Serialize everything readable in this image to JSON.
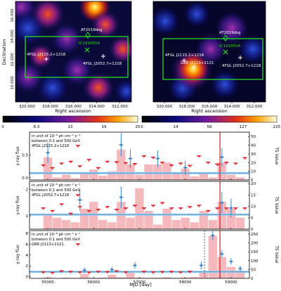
{
  "maps": [
    {
      "id": "left",
      "xlabel": "Right ascension",
      "ylabel": "Declination",
      "xticks": [
        "320.000",
        "318.000",
        "316.000",
        "314.000",
        "312.000"
      ],
      "yticks": [
        "16.000",
        "14.000",
        "12.000",
        "10.000"
      ],
      "labels": {
        "at": "AT2019dsg",
        "ic": "IC191001A",
        "src1": "4FGL J2115.2+1218",
        "src2": "4FGL J2052.7+1218"
      },
      "colorbar": {
        "ticks": [
          "0",
          "6.3",
          "13",
          "19",
          "25"
        ],
        "min": 0,
        "max": 25
      }
    },
    {
      "id": "right",
      "xlabel": "Right ascension",
      "ylabel": "",
      "xticks": [
        "320.000",
        "318.000",
        "316.000",
        "314.000",
        "312.000"
      ],
      "yticks": [],
      "labels": {
        "at": "AT2019dsg",
        "ic": "IC191001A",
        "src1": "4FGL J2115.2+1218",
        "src2": "4FGL J2052.7+1218",
        "gb6": "GB6 J2113+1121"
      },
      "colorbar": {
        "ticks": [
          "0",
          "14",
          "56",
          "127",
          "225"
        ],
        "min": 0,
        "max": 225
      }
    }
  ],
  "chart_data": [
    {
      "type": "scatter",
      "panel": "1",
      "annotation": [
        "in unit of 10⁻⁸ ph cm⁻² s⁻¹",
        "between 0.1 and 500 GeV",
        "4FGL J2115.2+1218"
      ],
      "xlabel": "MJD [day]",
      "ylabel": "γ-ray flux",
      "y2label": "TS Value",
      "xlim": [
        54600,
        59400
      ],
      "ylim": [
        -0.05,
        1.0
      ],
      "y2lim": [
        0,
        55
      ],
      "yticks": [
        "0.0",
        "0.5"
      ],
      "y2ticks": [
        "0",
        "10",
        "20",
        "30",
        "40",
        "50"
      ],
      "event_mjd": 58758,
      "ul_x": [
        54900,
        55100,
        55300,
        55500,
        55700,
        55900,
        56100,
        56300,
        56500,
        56700,
        56900,
        57100,
        57300,
        57500,
        57700,
        57900,
        58100,
        58300,
        58500,
        58700,
        58900,
        59100,
        59300
      ],
      "ul_y": [
        0.28,
        0.22,
        0.32,
        0.36,
        0.26,
        0.4,
        0.22,
        0.36,
        0.35,
        0.33,
        0.31,
        0.48,
        0.45,
        0.34,
        0.28,
        0.32,
        0.27,
        0.48,
        0.34,
        0.3,
        0.34,
        0.32,
        0.44
      ],
      "det_x": [
        55000,
        56600,
        56800,
        57400,
        58000,
        58800
      ],
      "det_y": [
        0.55,
        0.72,
        0.42,
        0.42,
        0.22,
        0.45
      ],
      "det_err": [
        0.22,
        0.25,
        0.2,
        0.18,
        0.15,
        0.2
      ],
      "ts_x": [
        55000,
        55200,
        55400,
        55600,
        55800,
        56000,
        56200,
        56400,
        56600,
        56800,
        57000,
        57200,
        57400,
        57600,
        57800,
        58000,
        58200,
        58400,
        58600,
        58800,
        59000,
        59200
      ],
      "ts_y": [
        26,
        3,
        6,
        2,
        8,
        12,
        5,
        10,
        35,
        18,
        6,
        18,
        18,
        20,
        8,
        13,
        4,
        9,
        3,
        20,
        6,
        3
      ],
      "avg_line": 0.1
    },
    {
      "type": "scatter",
      "panel": "2",
      "annotation": [
        "in unit of 10⁻⁸ ph cm⁻² s⁻¹",
        "between 0.1 and 500 GeV",
        "4FGL J2052.7+1218"
      ],
      "xlabel": "MJD [day]",
      "ylabel": "γ-ray flux",
      "y2label": "TS Value",
      "xlim": [
        54600,
        59400
      ],
      "ylim": [
        0.5,
        2.3
      ],
      "y2lim": [
        0,
        21
      ],
      "yticks": [
        "1",
        "2"
      ],
      "y2ticks": [
        "0",
        "5",
        "10",
        "15",
        "20"
      ],
      "event_mjd": 58758,
      "ul_x": [
        54900,
        55100,
        55300,
        55500,
        55700,
        55900,
        56100,
        56300,
        56500,
        56700,
        56900,
        57100,
        57300,
        57500,
        57700,
        57900,
        58100,
        58300,
        58500,
        58700,
        58900,
        59100,
        59300
      ],
      "ul_y": [
        1.3,
        1.2,
        1.45,
        1.1,
        1.35,
        1.2,
        1.25,
        1.35,
        1.25,
        1.3,
        1.4,
        1.3,
        1.4,
        1.5,
        1.3,
        1.3,
        1.35,
        1.4,
        1.2,
        1.3,
        1.3,
        1.3,
        1.3
      ],
      "det_x": [
        55700,
        56600,
        58800,
        59000
      ],
      "det_y": [
        1.6,
        1.7,
        1.5,
        1.3
      ],
      "det_err": [
        0.4,
        0.4,
        0.4,
        0.35
      ],
      "ts_x": [
        55000,
        55200,
        55400,
        55600,
        55800,
        56000,
        56200,
        56400,
        56600,
        56800,
        57000,
        57200,
        57400,
        57600,
        57800,
        58000,
        58200,
        58400,
        58600,
        58800,
        59000,
        59200
      ],
      "ts_y": [
        6,
        5,
        4,
        3,
        9,
        12,
        4,
        3,
        12,
        5,
        18,
        8,
        2,
        9,
        4,
        5,
        3,
        8,
        4,
        12,
        9,
        5
      ],
      "avg_line": 1.05
    },
    {
      "type": "scatter",
      "panel": "3",
      "annotation": [
        "in unit of 10⁻⁸ ph cm⁻² s⁻¹",
        "between 0.1 and 500 GeV",
        "GB6 J2113+1121"
      ],
      "xlabel": "MJD [day]",
      "ylabel": "γ-ray flux",
      "y2label": "TS Value",
      "xlim": [
        54600,
        59400
      ],
      "ylim": [
        -0.3,
        8.5
      ],
      "y2lim": [
        0,
        270
      ],
      "yticks": [
        "0",
        "2",
        "4",
        "6",
        "8"
      ],
      "y2ticks": [
        "0",
        "50",
        "100",
        "150",
        "200",
        "250"
      ],
      "xticks": [
        "55000",
        "56000",
        "57000",
        "58000",
        "59000"
      ],
      "event_mjd": 58758,
      "dash_mjd": 58420,
      "ul_x": [
        54900,
        55100,
        55300,
        55500,
        55700,
        55900,
        56100,
        56300,
        56500,
        56700,
        57100,
        57300,
        57500,
        57700,
        57900,
        58100
      ],
      "ul_y": [
        0.9,
        0.8,
        1.1,
        1.0,
        0.9,
        0.85,
        1.0,
        0.95,
        1.1,
        0.9,
        1.0,
        0.9,
        0.95,
        1.0,
        0.9,
        1.0
      ],
      "det_x": [
        55800,
        56400,
        56900,
        58350,
        58600,
        58800,
        59000,
        59200
      ],
      "det_y": [
        1.2,
        1.3,
        2.1,
        2.1,
        7.6,
        4.2,
        2.8,
        1.5
      ],
      "det_err": [
        0.5,
        0.5,
        0.6,
        0.7,
        0.9,
        0.7,
        0.6,
        0.5
      ],
      "ts_x": [
        55000,
        55200,
        55400,
        55600,
        55800,
        56000,
        56200,
        56400,
        56600,
        56800,
        57000,
        57200,
        57400,
        57600,
        57800,
        58000,
        58200,
        58400,
        58600,
        58800,
        59000,
        59200
      ],
      "ts_y": [
        5,
        2,
        4,
        3,
        25,
        3,
        4,
        20,
        6,
        35,
        5,
        3,
        4,
        6,
        3,
        5,
        8,
        35,
        240,
        120,
        65,
        45
      ],
      "avg_line": 0.9
    }
  ]
}
